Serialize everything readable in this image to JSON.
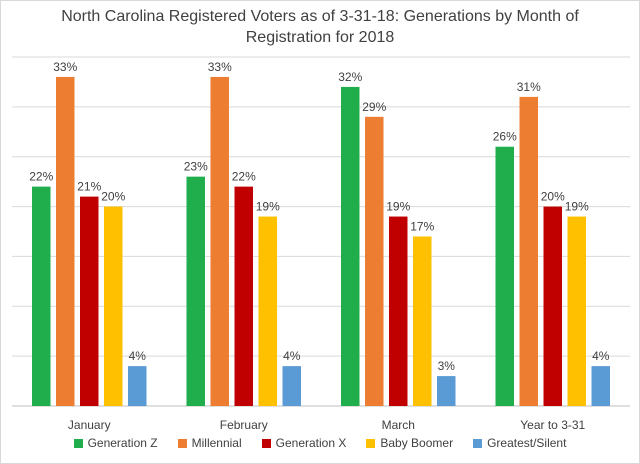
{
  "chart_data": {
    "type": "bar",
    "title_line1": "North Carolina Registered Voters as of 3-31-18: Generations by Month of",
    "title_line2": "Registration for 2018",
    "categories": [
      "January",
      "February",
      "March",
      "Year to 3-31"
    ],
    "series": [
      {
        "name": "Generation Z",
        "color": "#1fae4b",
        "values": [
          22,
          23,
          32,
          26
        ]
      },
      {
        "name": "Millennial",
        "color": "#ed7d31",
        "values": [
          33,
          33,
          29,
          31
        ]
      },
      {
        "name": "Generation X",
        "color": "#c00000",
        "values": [
          21,
          22,
          19,
          20
        ]
      },
      {
        "name": "Baby Boomer",
        "color": "#ffc000",
        "values": [
          20,
          19,
          17,
          19
        ]
      },
      {
        "name": "Greatest/Silent",
        "color": "#5b9bd5",
        "values": [
          4,
          4,
          3,
          4
        ]
      }
    ],
    "value_suffix": "%",
    "ylim": [
      0,
      35
    ],
    "grid": true,
    "legend_position": "bottom"
  }
}
